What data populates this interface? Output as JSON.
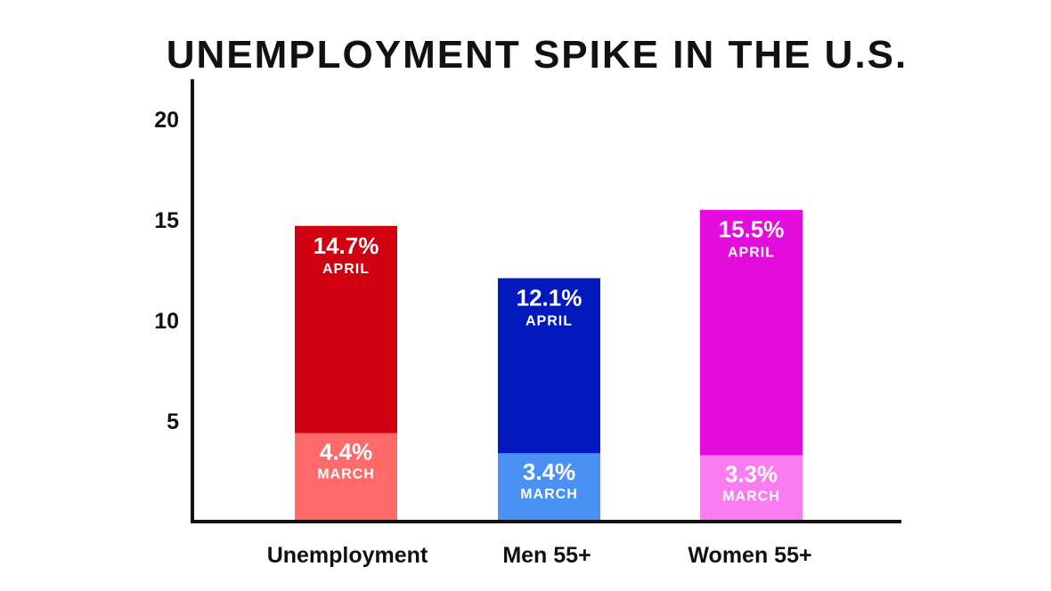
{
  "chart_data": {
    "type": "bar",
    "title": "UNEMPLOYMENT SPIKE IN THE U.S.",
    "xlabel": "",
    "ylabel": "",
    "ylim": [
      0,
      22
    ],
    "yticks": [
      "5",
      "10",
      "15",
      "20"
    ],
    "categories": [
      "Unemployment",
      "Men 55+",
      "Women 55+"
    ],
    "series": [
      {
        "name": "APRIL",
        "values": [
          14.7,
          12.1,
          15.5
        ],
        "labels": [
          "14.7%",
          "12.1%",
          "15.5%"
        ],
        "colors": [
          "#d10011",
          "#0219bd",
          "#e40cdd"
        ]
      },
      {
        "name": "MARCH",
        "values": [
          4.4,
          3.4,
          3.3
        ],
        "labels": [
          "4.4%",
          "3.4%",
          "3.3%"
        ],
        "colors": [
          "#ff6b6b",
          "#4a90f5",
          "#fb7cf1"
        ]
      }
    ],
    "grid": false,
    "legend": "none"
  }
}
